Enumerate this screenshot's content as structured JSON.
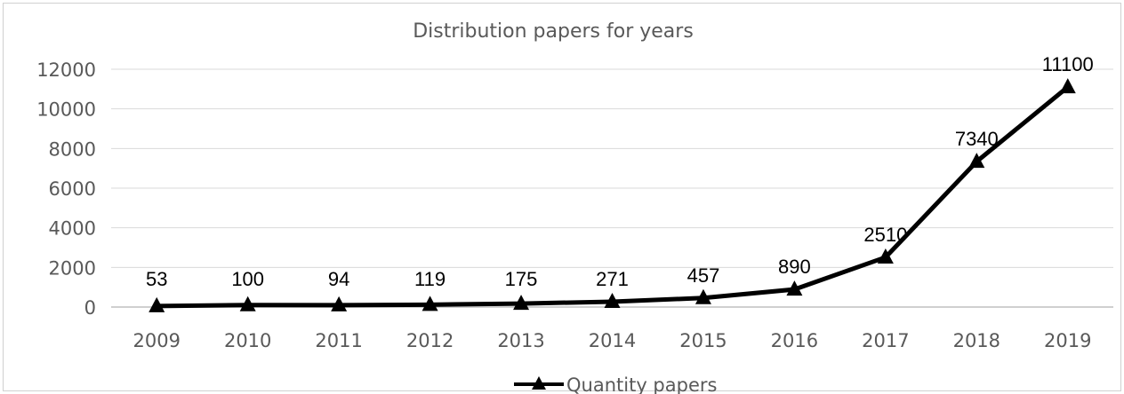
{
  "chart_data": {
    "type": "line",
    "title": "Distribution papers for years",
    "xlabel": "",
    "ylabel": "",
    "categories": [
      "2009",
      "2010",
      "2011",
      "2012",
      "2013",
      "2014",
      "2015",
      "2016",
      "2017",
      "2018",
      "2019"
    ],
    "series": [
      {
        "name": "Quantity papers",
        "values": [
          53,
          100,
          94,
          119,
          175,
          271,
          457,
          890,
          2510,
          7340,
          11100
        ],
        "color": "#000000",
        "marker": "triangle"
      }
    ],
    "ylim": [
      0,
      12000
    ],
    "yticks": [
      0,
      2000,
      4000,
      6000,
      8000,
      10000,
      12000
    ],
    "grid": true,
    "legend": "bottom",
    "data_labels": true
  }
}
